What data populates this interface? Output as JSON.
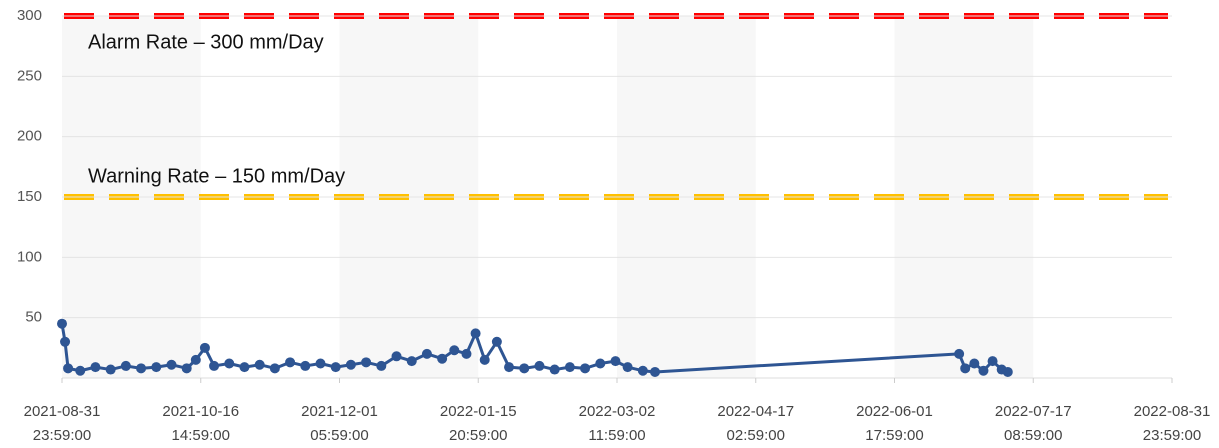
{
  "chart_data": {
    "type": "line",
    "x": [
      "2021-09-01",
      "2021-09-02",
      "2021-09-03",
      "2021-09-07",
      "2021-09-12",
      "2021-09-17",
      "2021-09-22",
      "2021-09-27",
      "2021-10-02",
      "2021-10-07",
      "2021-10-12",
      "2021-10-15",
      "2021-10-18",
      "2021-10-21",
      "2021-10-26",
      "2021-10-31",
      "2021-11-05",
      "2021-11-10",
      "2021-11-15",
      "2021-11-20",
      "2021-11-25",
      "2021-11-30",
      "2021-12-05",
      "2021-12-10",
      "2021-12-15",
      "2021-12-20",
      "2021-12-25",
      "2021-12-30",
      "2022-01-04",
      "2022-01-08",
      "2022-01-12",
      "2022-01-15",
      "2022-01-18",
      "2022-01-22",
      "2022-01-26",
      "2022-01-31",
      "2022-02-05",
      "2022-02-10",
      "2022-02-15",
      "2022-02-20",
      "2022-02-25",
      "2022-03-02",
      "2022-03-06",
      "2022-03-11",
      "2022-03-15",
      "2022-06-23",
      "2022-06-25",
      "2022-06-28",
      "2022-07-01",
      "2022-07-04",
      "2022-07-07",
      "2022-07-09"
    ],
    "series": [
      {
        "color": "#2e5593",
        "values": [
          45,
          30,
          8,
          6,
          9,
          7,
          10,
          8,
          9,
          11,
          8,
          15,
          25,
          10,
          12,
          9,
          11,
          8,
          13,
          10,
          12,
          9,
          11,
          13,
          10,
          18,
          14,
          20,
          16,
          23,
          20,
          37,
          15,
          30,
          9,
          8,
          10,
          7,
          9,
          8,
          12,
          14,
          9,
          6,
          5,
          20,
          8,
          12,
          6,
          14,
          7,
          5
        ]
      }
    ],
    "xlim": [
      "2021-08-31 23:59:00",
      "2022-08-31 23:59:00"
    ],
    "xticks": [
      "2021-08-31 23:59:00",
      "2021-10-16 14:59:00",
      "2021-12-01 05:59:00",
      "2022-01-15 20:59:00",
      "2022-03-02 11:59:00",
      "2022-04-17 02:59:00",
      "2022-06-01 17:59:00",
      "2022-07-17 08:59:00",
      "2022-08-31 23:59:00"
    ],
    "ylim": [
      0,
      300
    ],
    "yticks": [
      50,
      100,
      150,
      200,
      250,
      300
    ],
    "grid": true,
    "thresholds": [
      {
        "label": "Alarm Rate – 300 mm/Day",
        "value": 300,
        "color": "#ff0000"
      },
      {
        "label": "Warning Rate – 150 mm/Day",
        "value": 150,
        "color": "#ffc000"
      }
    ]
  }
}
